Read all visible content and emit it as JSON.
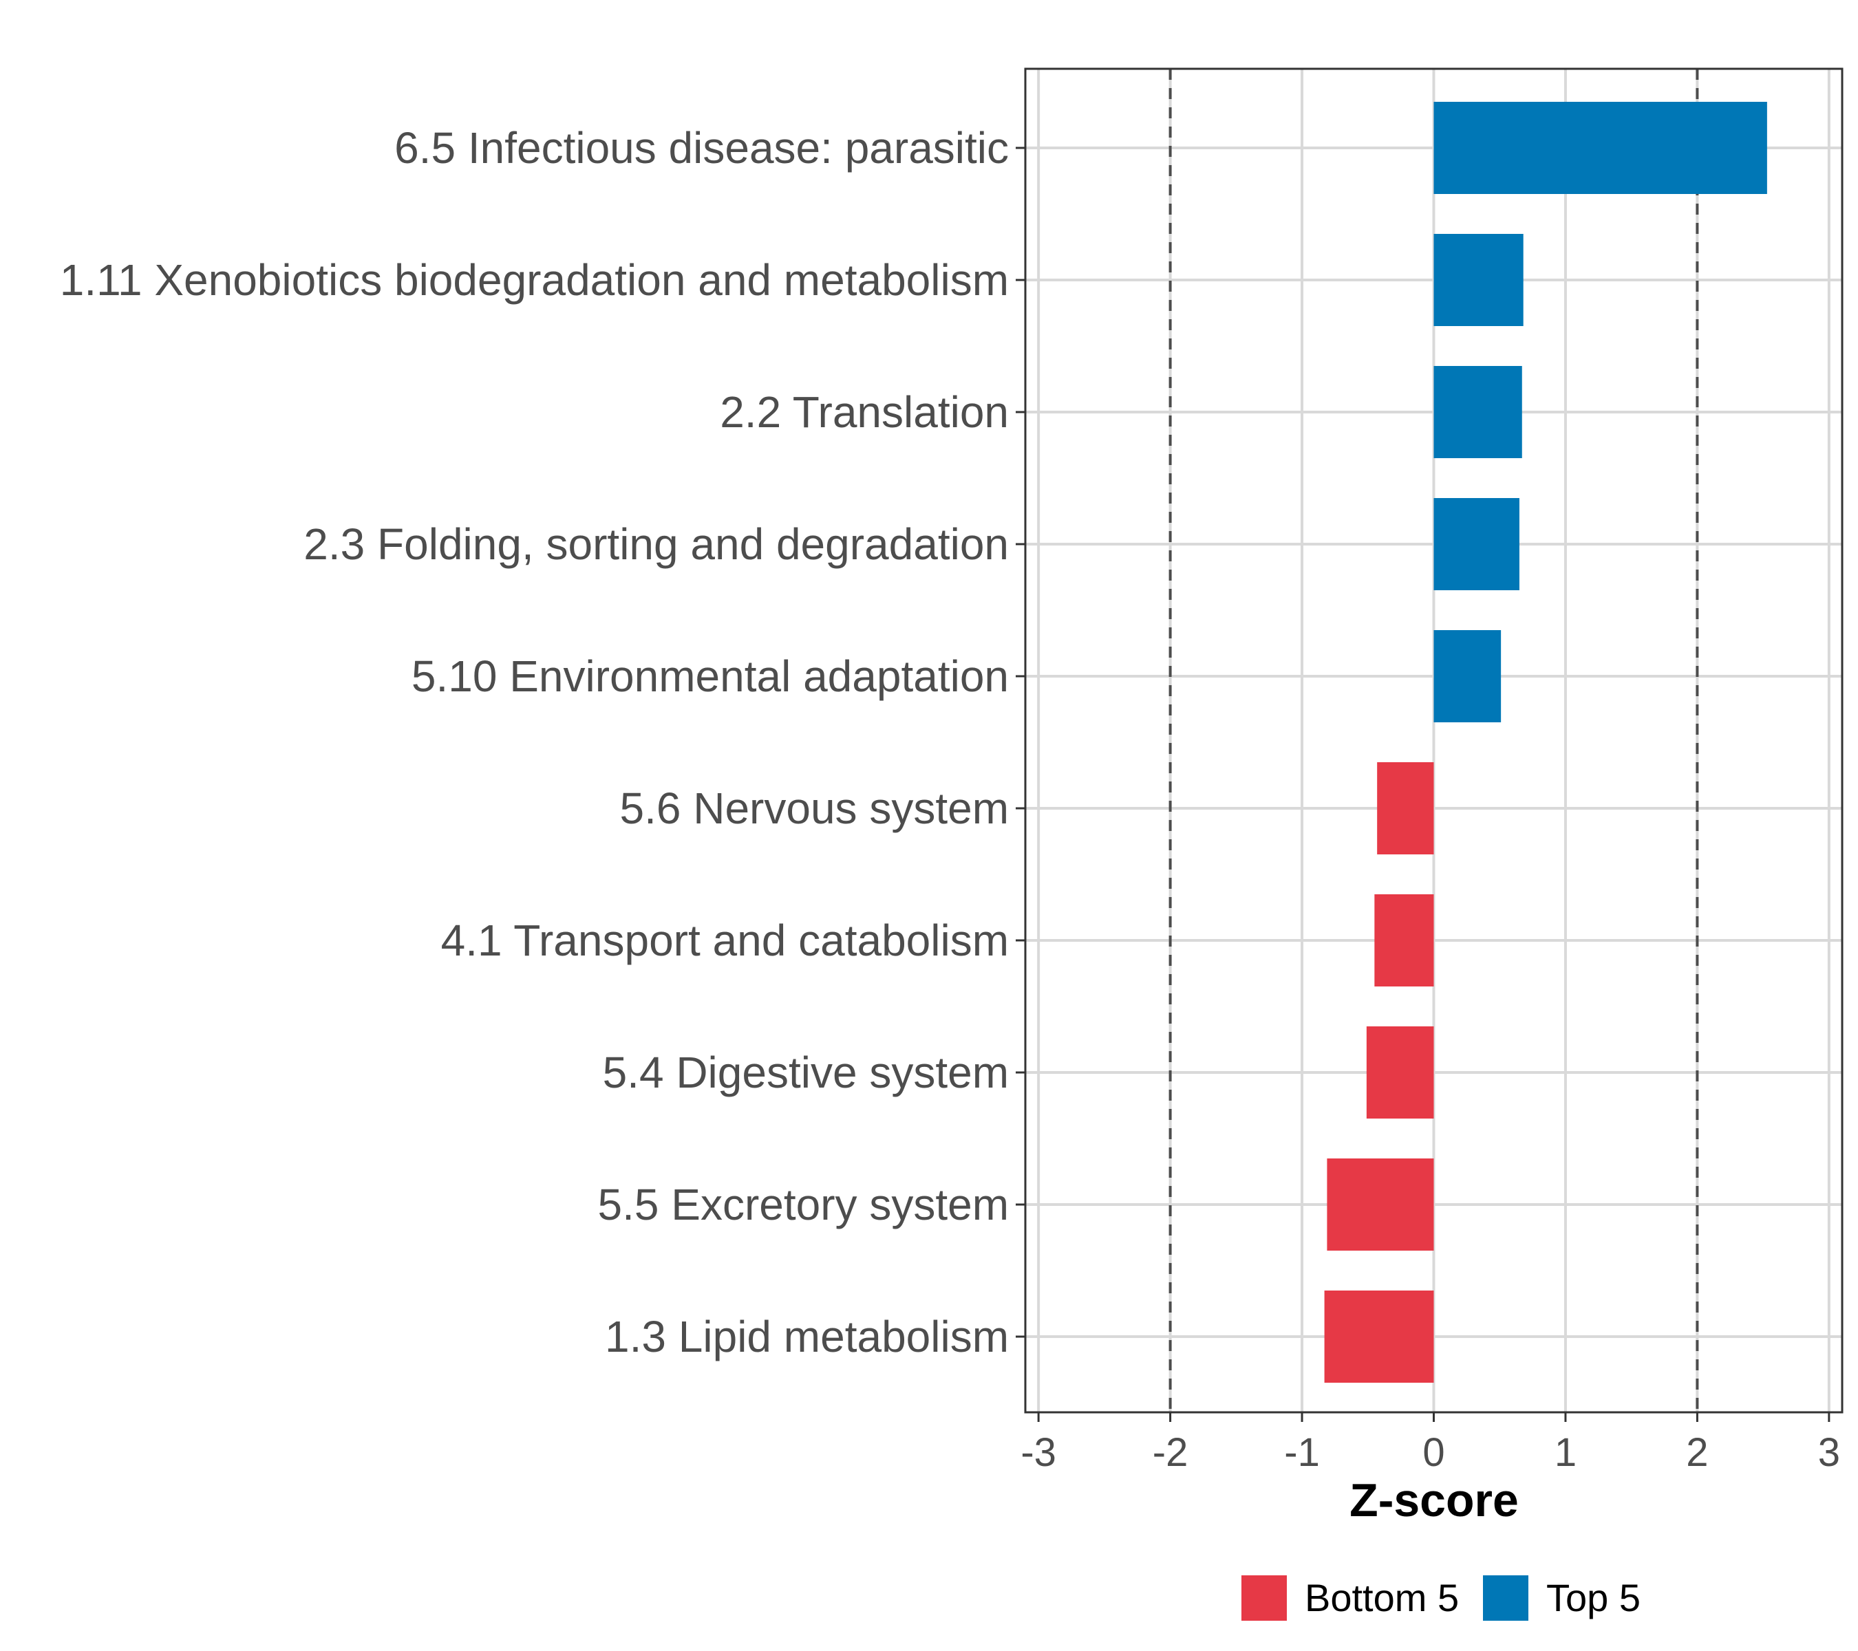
{
  "chart_data": {
    "type": "bar",
    "orientation": "horizontal",
    "xlabel": "Z-score",
    "xlim": [
      -3.1,
      3.1
    ],
    "x_ticks": [
      -3,
      -2,
      -1,
      0,
      1,
      2,
      3
    ],
    "x_tick_labels": [
      "-3",
      "-2",
      "-1",
      "0",
      "1",
      "2",
      "3"
    ],
    "reference_lines": [
      -2,
      2
    ],
    "categories": [
      "6.5 Infectious disease: parasitic",
      "1.11 Xenobiotics biodegradation and metabolism",
      "2.2 Translation",
      "2.3 Folding, sorting and degradation",
      "5.10 Environmental adaptation",
      "5.6 Nervous system",
      "4.1 Transport and catabolism",
      "5.4 Digestive system",
      "5.5 Excretory system",
      "1.3 Lipid metabolism"
    ],
    "values": [
      2.53,
      0.68,
      0.67,
      0.65,
      0.51,
      -0.43,
      -0.45,
      -0.51,
      -0.81,
      -0.83
    ],
    "groups": [
      "Top 5",
      "Top 5",
      "Top 5",
      "Top 5",
      "Top 5",
      "Bottom 5",
      "Bottom 5",
      "Bottom 5",
      "Bottom 5",
      "Bottom 5"
    ],
    "legend": {
      "position": "bottom",
      "entries": [
        {
          "label": "Bottom 5",
          "color": "#E63946"
        },
        {
          "label": "Top 5",
          "color": "#0077B6"
        }
      ]
    }
  }
}
